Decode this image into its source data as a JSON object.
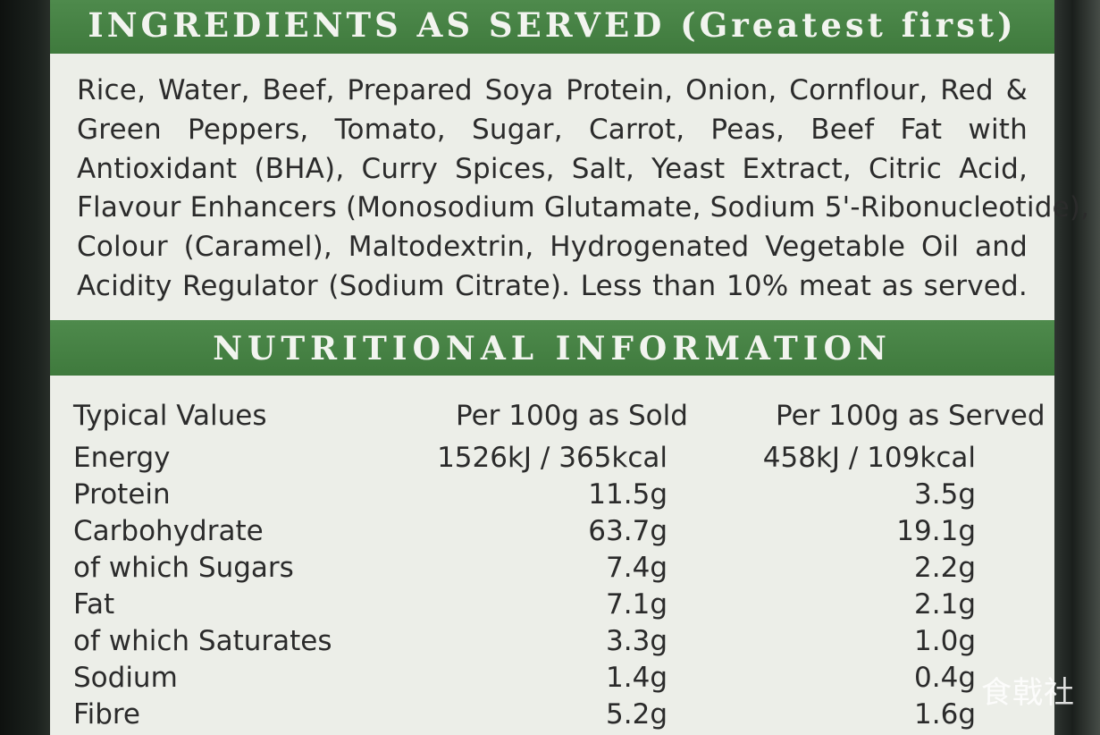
{
  "ingredients": {
    "heading": "INGREDIENTS AS SERVED (Greatest first)",
    "lines": [
      "Rice, Water, Beef, Prepared Soya Protein, Onion, Cornflour, Red &",
      "Green Peppers, Tomato, Sugar, Carrot, Peas, Beef Fat with",
      "Antioxidant (BHA), Curry Spices, Salt, Yeast Extract, Citric Acid,",
      "Flavour Enhancers (Monosodium Glutamate, Sodium 5'-Ribonucleotide),",
      "Colour (Caramel), Maltodextrin, Hydrogenated Vegetable Oil and",
      "Acidity Regulator (Sodium Citrate). Less than 10% meat as served."
    ]
  },
  "nutrition": {
    "heading": "NUTRITIONAL INFORMATION",
    "columns": [
      "Typical Values",
      "Per 100g as Sold",
      "Per 100g as Served"
    ],
    "rows": [
      {
        "label": "Energy",
        "sold": "1526kJ / 365kcal",
        "served": "458kJ / 109kcal"
      },
      {
        "label": "Protein",
        "sold": "11.5g",
        "served": "3.5g"
      },
      {
        "label": "Carbohydrate",
        "sold": "63.7g",
        "served": "19.1g"
      },
      {
        "label": "of which Sugars",
        "sold": "7.4g",
        "served": "2.2g"
      },
      {
        "label": "Fat",
        "sold": "7.1g",
        "served": "2.1g"
      },
      {
        "label": "of which Saturates",
        "sold": "3.3g",
        "served": "1.0g"
      },
      {
        "label": "Sodium",
        "sold": "1.4g",
        "served": "0.4g"
      },
      {
        "label": "Fibre",
        "sold": "5.2g",
        "served": "1.6g"
      }
    ]
  },
  "watermark": "食戟社",
  "colors": {
    "band_green": "#467f44",
    "label_paper": "#eceee8",
    "text": "#2b2b2b"
  }
}
